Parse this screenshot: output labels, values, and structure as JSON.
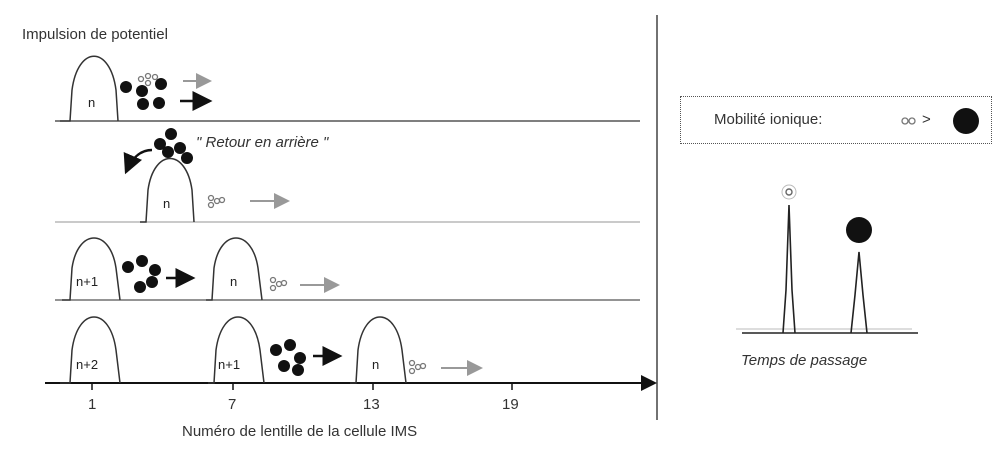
{
  "title": "Impulsion de potentiel",
  "annotation_retour": "\" Retour en arrière \"",
  "x_axis_label": "Numéro de lentille de la cellule IMS",
  "x_ticks": [
    "1",
    "7",
    "13",
    "19"
  ],
  "peaks": {
    "row1": [
      "n"
    ],
    "row2": [
      "n"
    ],
    "row3": [
      "n+1",
      "n"
    ],
    "row4": [
      "n+2",
      "n+1",
      "n"
    ]
  },
  "legend": {
    "label": "Mobilité ionique:",
    "comparator": ">"
  },
  "spectrum_xlabel": "Temps de passage",
  "colors": {
    "line": "#222222",
    "ion_large": "#111111",
    "ion_small": "#888888",
    "arrow_light": "#999999"
  }
}
